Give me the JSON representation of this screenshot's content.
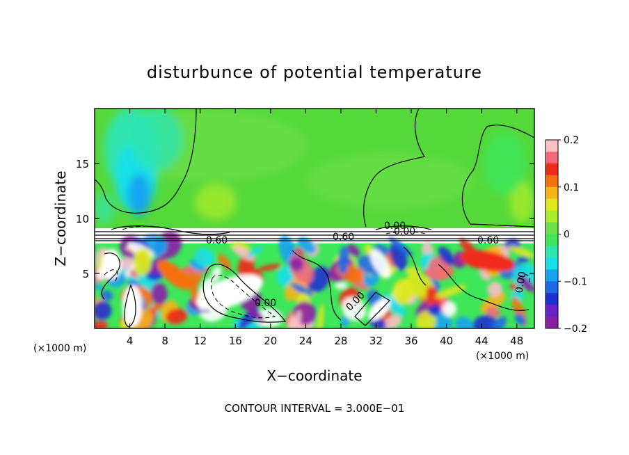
{
  "chart_data": {
    "type": "heatmap",
    "title": "disturbunce of potential temperature",
    "xlabel": "X−coordinate",
    "ylabel": "Z−coordinate",
    "x_unit": "(×1000 m)",
    "x_unit_right": "(×1000 m)",
    "xlim": [
      0,
      50
    ],
    "ylim": [
      0,
      20
    ],
    "x_ticks": [
      4,
      8,
      12,
      16,
      20,
      24,
      28,
      32,
      36,
      40,
      44,
      48
    ],
    "y_ticks": [
      5,
      10,
      15
    ],
    "colorbar": {
      "range": [
        -0.2,
        0.2
      ],
      "tick_values": [
        0.2,
        0.1,
        0,
        -0.1,
        -0.2
      ],
      "tick_labels": [
        "0.2",
        "0.1",
        "0",
        "−0.1",
        "−0.2"
      ]
    },
    "contour_labels": [
      "0.60",
      "0.00",
      "0.00",
      "0.00",
      "0.60",
      "0.00",
      "0.60",
      "0.00"
    ],
    "footnote": "CONTOUR INTERVAL = 3.000E−01"
  },
  "colors": {
    "scale": [
      "#8a1fa6",
      "#6a1fc8",
      "#2030d0",
      "#1e6ae6",
      "#14a4f0",
      "#16e0e8",
      "#30e6b0",
      "#3ee65a",
      "#6ee04a",
      "#a8ec2a",
      "#e0e81c",
      "#f8b414",
      "#f67010",
      "#f02a1a",
      "#f46a7a",
      "#fac0c8"
    ],
    "background": "#ffffff",
    "upper_layer": "#55d83a",
    "stable_band": "#ffffff"
  }
}
